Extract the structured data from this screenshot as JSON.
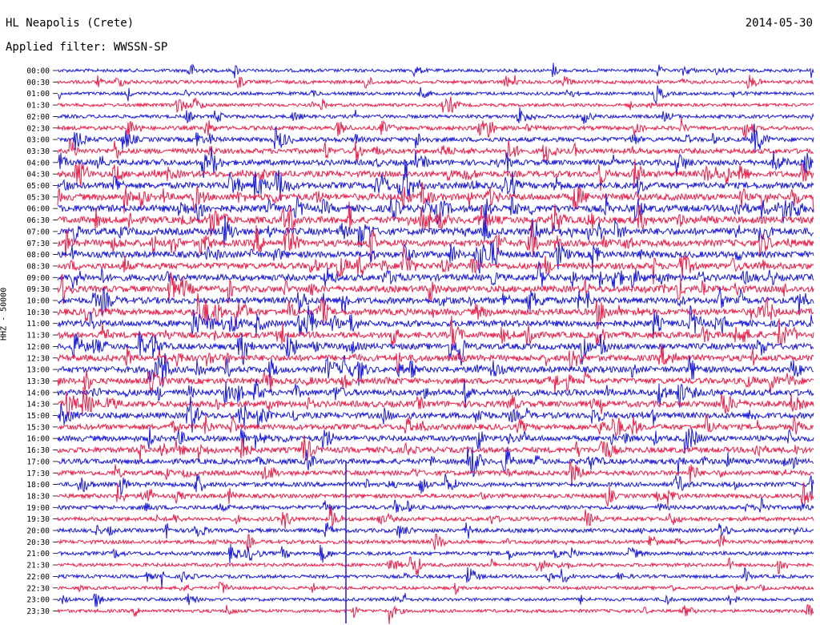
{
  "header": {
    "station": "HL Neapolis (Crete)",
    "date": "2014-05-30",
    "filter": "Applied filter: WWSSN-SP"
  },
  "chart_data": {
    "type": "line",
    "title": "HL Neapolis (Crete)",
    "subtitle": "Applied filter: WWSSN-SP",
    "date": "2014-05-30",
    "xlabel": "",
    "ylabel": "HHZ - 50000",
    "row_labels": [
      "00:00",
      "00:30",
      "01:00",
      "01:30",
      "02:00",
      "02:30",
      "03:00",
      "03:30",
      "04:00",
      "04:30",
      "05:00",
      "05:30",
      "06:00",
      "06:30",
      "07:00",
      "07:30",
      "08:00",
      "08:30",
      "09:00",
      "09:30",
      "10:00",
      "10:30",
      "11:00",
      "11:30",
      "12:00",
      "12:30",
      "13:00",
      "13:30",
      "14:00",
      "14:30",
      "15:00",
      "15:30",
      "16:00",
      "16:30",
      "17:00",
      "17:30",
      "18:00",
      "18:30",
      "19:00",
      "19:30",
      "20:00",
      "20:30",
      "21:00",
      "21:30",
      "22:00",
      "22:30",
      "23:00",
      "23:30"
    ],
    "activity_level": [
      0.3,
      0.35,
      0.3,
      0.3,
      0.35,
      0.45,
      0.55,
      0.65,
      0.75,
      0.85,
      0.9,
      0.95,
      1.0,
      1.0,
      1.0,
      0.95,
      0.9,
      0.9,
      0.9,
      0.9,
      0.9,
      0.9,
      0.9,
      0.85,
      0.85,
      0.85,
      0.85,
      0.8,
      0.85,
      0.85,
      0.8,
      0.75,
      0.75,
      0.75,
      0.7,
      0.6,
      0.55,
      0.5,
      0.45,
      0.45,
      0.45,
      0.4,
      0.4,
      0.35,
      0.35,
      0.3,
      0.3,
      0.3
    ],
    "colors": {
      "even": "#1a1ad8",
      "odd": "#e8204a"
    }
  }
}
